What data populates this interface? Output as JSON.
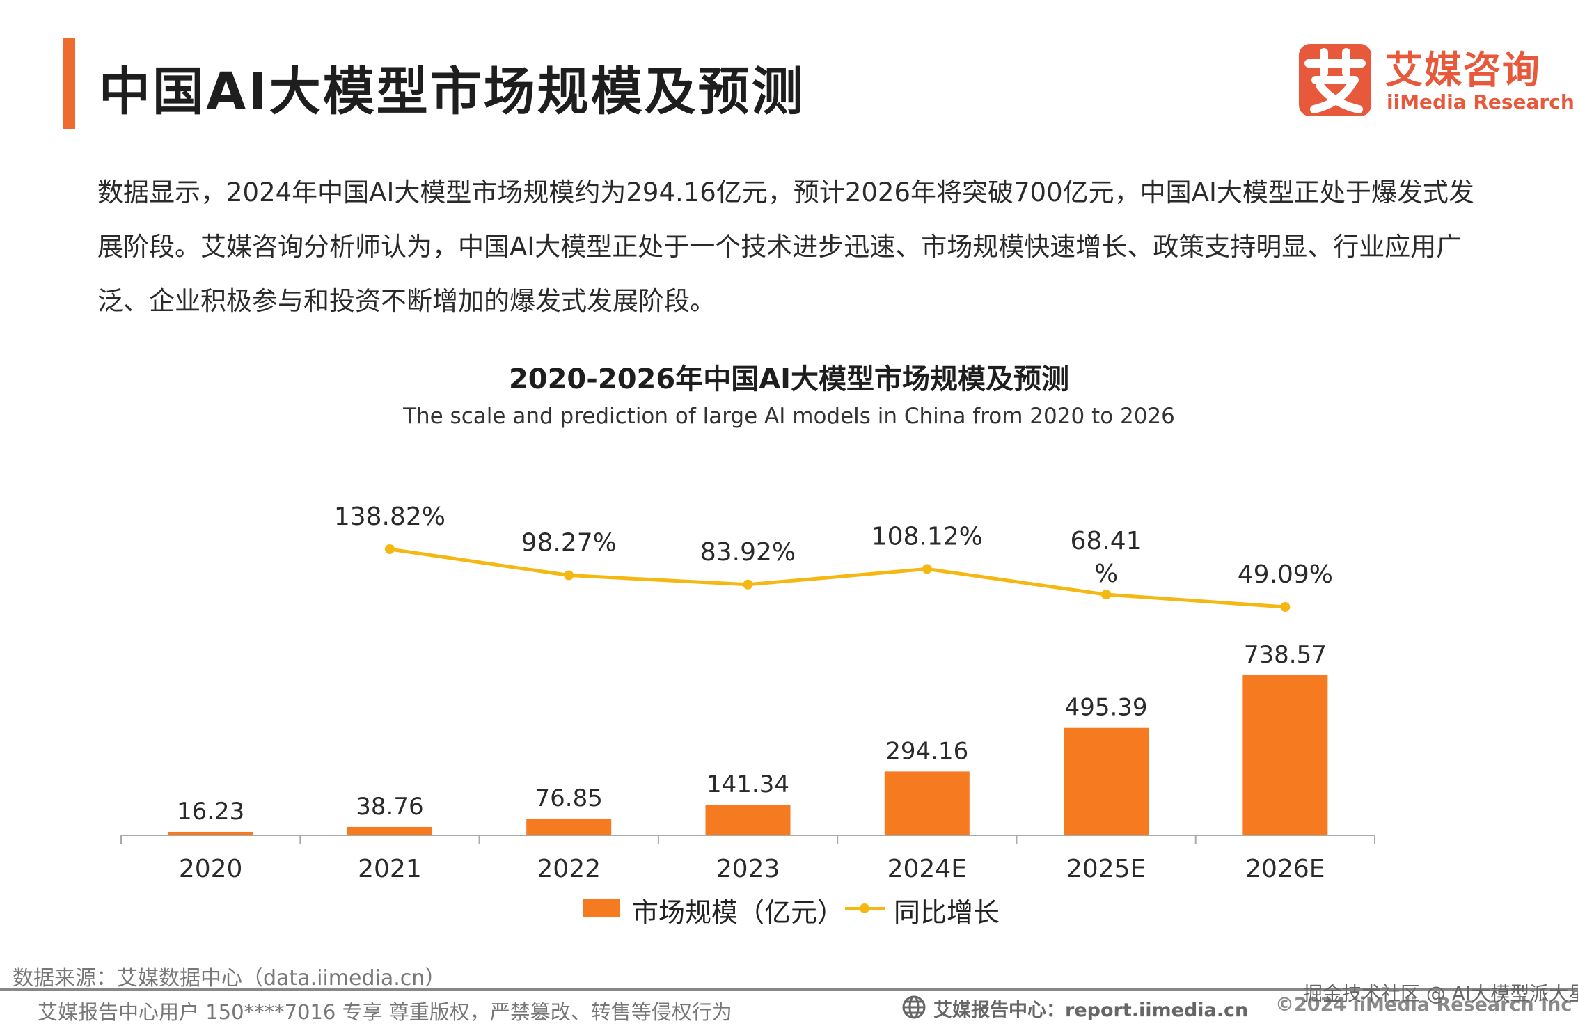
{
  "header": {
    "title": "中国AI大模型市场规模及预测",
    "accent_color": "#ef6a2e"
  },
  "logo": {
    "mark_char": "艾",
    "name_cn": "艾媒咨询",
    "name_en": "iiMedia Research",
    "color": "#e8583a"
  },
  "intro": {
    "text": "数据显示，2024年中国AI大模型市场规模约为294.16亿元，预计2026年将突破700亿元，中国AI大模型正处于爆发式发展阶段。艾媒咨询分析师认为，中国AI大模型正处于一个技术进步迅速、市场规模快速增长、政策支持明显、行业应用广泛、企业积极参与和投资不断增加的爆发式发展阶段。"
  },
  "chart_data": {
    "type": "bar",
    "title": "2020-2026年中国AI大模型市场规模及预测",
    "subtitle": "The scale and prediction of large AI models in China from 2020 to 2026",
    "categories": [
      "2020",
      "2021",
      "2022",
      "2023",
      "2024E",
      "2025E",
      "2026E"
    ],
    "series": [
      {
        "name": "市场规模（亿元）",
        "type": "bar",
        "color": "#f57a20",
        "values": [
          16.23,
          38.76,
          76.85,
          141.34,
          294.16,
          495.39,
          738.57
        ],
        "labels": [
          "16.23",
          "38.76",
          "76.85",
          "141.34",
          "294.16",
          "495.39",
          "738.57"
        ]
      },
      {
        "name": "同比增长",
        "type": "line",
        "color": "#f5b812",
        "values": [
          null,
          138.82,
          98.27,
          83.92,
          108.12,
          68.41,
          49.09
        ],
        "labels": [
          "",
          "138.82%",
          "98.27%",
          "83.92%",
          "108.12%",
          "68.41%",
          "49.09%"
        ]
      }
    ],
    "legend": "bottom-center",
    "grid": false
  },
  "footer": {
    "source": "数据来源：艾媒数据中心（data.iimedia.cn）",
    "user_notice": "艾媒报告中心用户 150****7016 专享 尊重版权，严禁篡改、转售等侵权行为",
    "report_center": "艾媒报告中心：report.iimedia.cn",
    "copyright": "©2024  iiMedia Research  Inc",
    "watermark": "掘金技术社区 @ AI大模型派大星"
  }
}
